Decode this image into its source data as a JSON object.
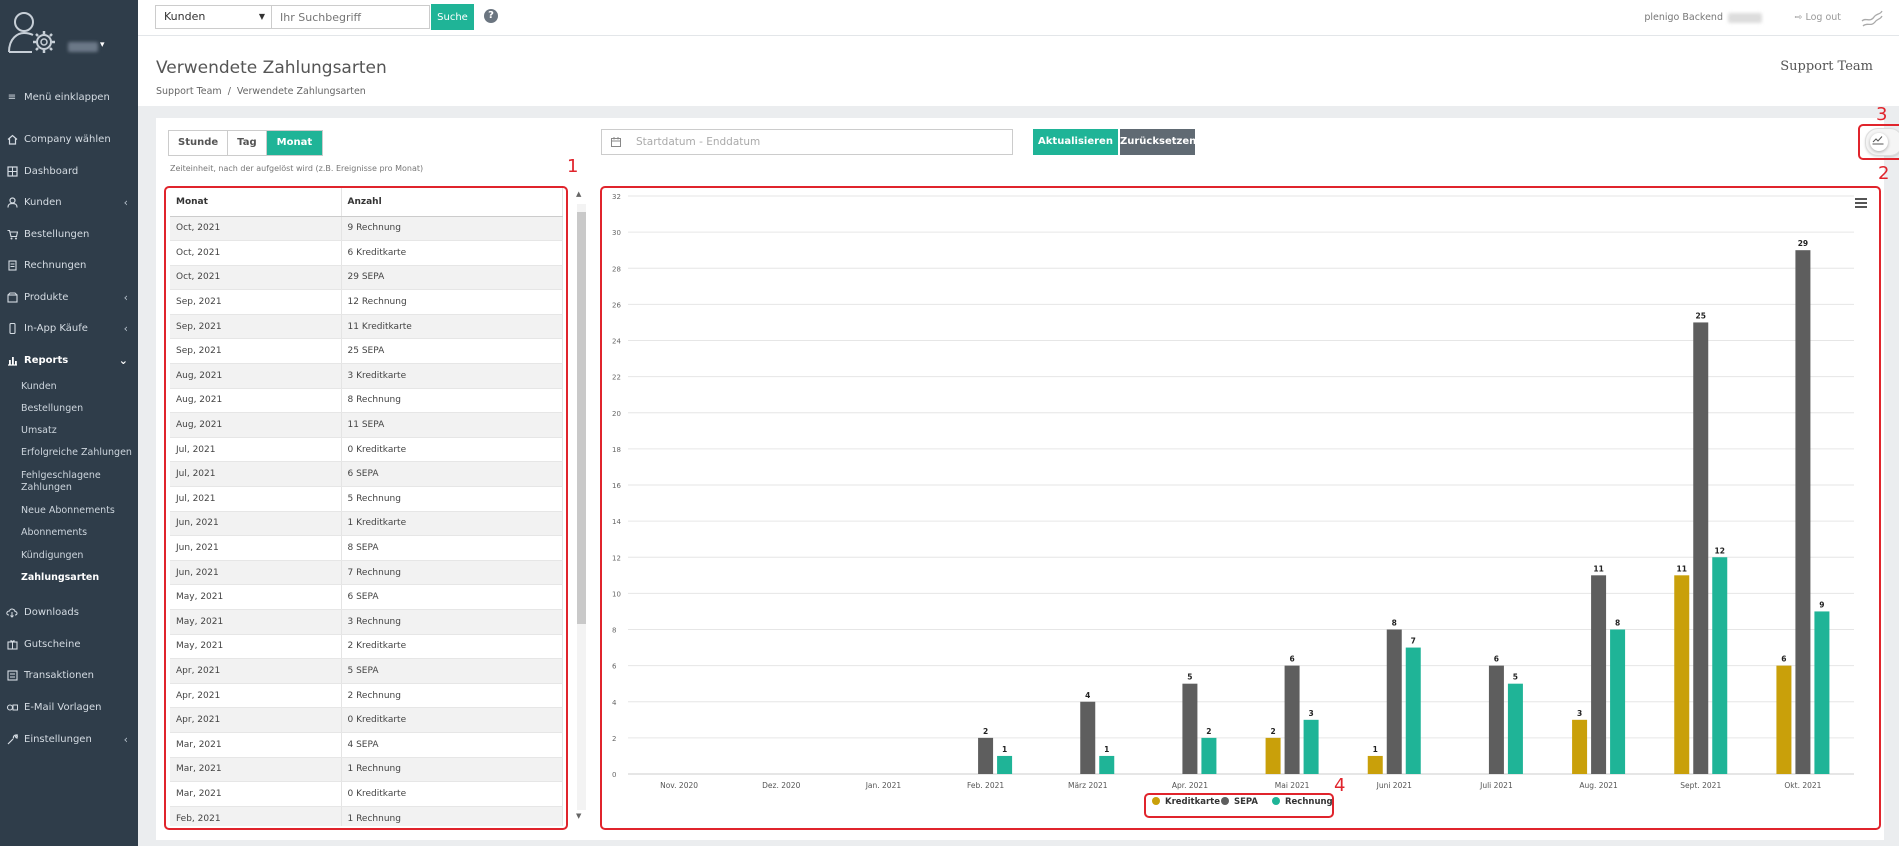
{
  "sidebar": {
    "collapse_label": "Menü einklappen",
    "items": [
      {
        "label": "Company wählen",
        "icon": "home-icon"
      },
      {
        "label": "Dashboard",
        "icon": "dashboard-icon"
      },
      {
        "label": "Kunden",
        "icon": "user-icon",
        "chevron": "‹"
      },
      {
        "label": "Bestellungen",
        "icon": "cart-icon"
      },
      {
        "label": "Rechnungen",
        "icon": "invoice-icon"
      },
      {
        "label": "Produkte",
        "icon": "box-icon",
        "chevron": "‹"
      },
      {
        "label": "In-App Käufe",
        "icon": "mobile-icon",
        "chevron": "‹"
      },
      {
        "label": "Reports",
        "icon": "bar-chart-icon",
        "chevron": "⌄"
      },
      {
        "label": "Downloads",
        "icon": "cloud-download-icon"
      },
      {
        "label": "Gutscheine",
        "icon": "voucher-icon"
      },
      {
        "label": "Transaktionen",
        "icon": "transactions-icon"
      },
      {
        "label": "E-Mail Vorlagen",
        "icon": "email-template-icon"
      },
      {
        "label": "Einstellungen",
        "icon": "wrench-icon",
        "chevron": "‹"
      }
    ],
    "reports_sub": [
      "Kunden",
      "Bestellungen",
      "Umsatz",
      "Erfolgreiche Zahlungen",
      "Fehlgeschlagene Zahlungen",
      "Neue Abonnements",
      "Abonnements",
      "Kündigungen",
      "Zahlungsarten"
    ]
  },
  "topbar": {
    "select_value": "Kunden",
    "search_placeholder": "Ihr Suchbegriff",
    "search_button": "Suche",
    "help": "?",
    "backend_label": "plenigo Backend",
    "logout": "Log out"
  },
  "header": {
    "title": "Verwendete Zahlungsarten",
    "breadcrumb": [
      "Support Team",
      "Verwendete Zahlungsarten"
    ],
    "company": "Support Team"
  },
  "controls": {
    "time_units": [
      "Stunde",
      "Tag",
      "Monat"
    ],
    "active_unit": "Monat",
    "hint": "Zeiteinheit, nach der aufgelöst wird (z.B. Ereignisse pro Monat)",
    "date_placeholder": "Startdatum - Enddatum",
    "update_button": "Aktualisieren →",
    "reset_button": "Zurücksetzen"
  },
  "annotations": [
    "1",
    "2",
    "3",
    "4"
  ],
  "table": {
    "headers": [
      "Monat",
      "Anzahl"
    ],
    "rows": [
      [
        "Oct, 2021",
        "9 Rechnung"
      ],
      [
        "Oct, 2021",
        "6 Kreditkarte"
      ],
      [
        "Oct, 2021",
        "29 SEPA"
      ],
      [
        "Sep, 2021",
        "12 Rechnung"
      ],
      [
        "Sep, 2021",
        "11 Kreditkarte"
      ],
      [
        "Sep, 2021",
        "25 SEPA"
      ],
      [
        "Aug, 2021",
        "3 Kreditkarte"
      ],
      [
        "Aug, 2021",
        "8 Rechnung"
      ],
      [
        "Aug, 2021",
        "11 SEPA"
      ],
      [
        "Jul, 2021",
        "0 Kreditkarte"
      ],
      [
        "Jul, 2021",
        "6 SEPA"
      ],
      [
        "Jul, 2021",
        "5 Rechnung"
      ],
      [
        "Jun, 2021",
        "1 Kreditkarte"
      ],
      [
        "Jun, 2021",
        "8 SEPA"
      ],
      [
        "Jun, 2021",
        "7 Rechnung"
      ],
      [
        "May, 2021",
        "6 SEPA"
      ],
      [
        "May, 2021",
        "3 Rechnung"
      ],
      [
        "May, 2021",
        "2 Kreditkarte"
      ],
      [
        "Apr, 2021",
        "5 SEPA"
      ],
      [
        "Apr, 2021",
        "2 Rechnung"
      ],
      [
        "Apr, 2021",
        "0 Kreditkarte"
      ],
      [
        "Mar, 2021",
        "4 SEPA"
      ],
      [
        "Mar, 2021",
        "1 Rechnung"
      ],
      [
        "Mar, 2021",
        "0 Kreditkarte"
      ],
      [
        "Feb, 2021",
        "1 Rechnung"
      ]
    ]
  },
  "chart_data": {
    "type": "bar",
    "categories": [
      "Nov. 2020",
      "Dez. 2020",
      "Jan. 2021",
      "Feb. 2021",
      "März 2021",
      "Apr. 2021",
      "Mai 2021",
      "Juni 2021",
      "Juli 2021",
      "Aug. 2021",
      "Sept. 2021",
      "Okt. 2021"
    ],
    "series": [
      {
        "name": "Kreditkarte",
        "color": "#c9a00a",
        "values": [
          null,
          null,
          null,
          null,
          null,
          0,
          2,
          1,
          0,
          3,
          11,
          6
        ]
      },
      {
        "name": "SEPA",
        "color": "#5e5e5e",
        "values": [
          null,
          null,
          null,
          2,
          4,
          5,
          6,
          8,
          6,
          11,
          25,
          29
        ]
      },
      {
        "name": "Rechnung",
        "color": "#1fb497",
        "values": [
          null,
          null,
          null,
          1,
          1,
          2,
          3,
          7,
          5,
          8,
          12,
          9
        ]
      }
    ],
    "yticks": [
      0,
      2,
      4,
      6,
      8,
      10,
      12,
      14,
      16,
      18,
      20,
      22,
      24,
      26,
      28,
      30,
      32
    ],
    "ylim": [
      0,
      32
    ],
    "grid": true,
    "legend": "bottom-center",
    "data_labels": true
  }
}
